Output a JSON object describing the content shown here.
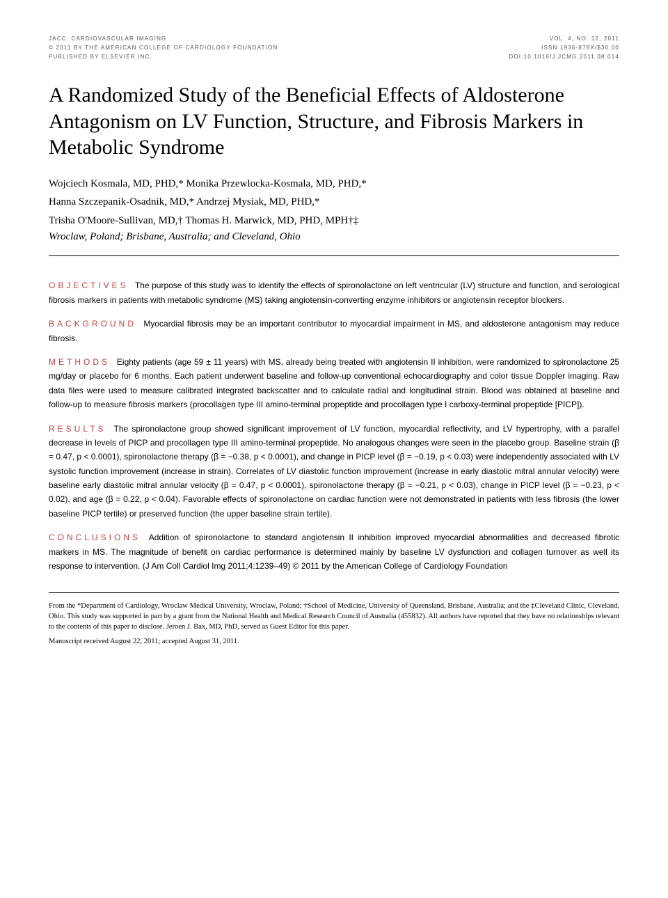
{
  "header": {
    "journal": "JACC: CARDIOVASCULAR IMAGING",
    "volume": "VOL. 4, NO. 12, 2011",
    "copyright": "© 2011 BY THE AMERICAN COLLEGE OF CARDIOLOGY FOUNDATION",
    "issn": "ISSN 1936-878X/$36.00",
    "publisher": "PUBLISHED BY ELSEVIER INC.",
    "doi": "DOI:10.1016/j.jcmg.2011.08.014"
  },
  "title": "A Randomized Study of the Beneficial Effects of Aldosterone Antagonism on LV Function, Structure, and Fibrosis Markers in Metabolic Syndrome",
  "authors_line1": "Wojciech Kosmala, MD, PHD,* Monika Przewlocka-Kosmala, MD, PHD,*",
  "authors_line2": "Hanna Szczepanik-Osadnik, MD,* Andrzej Mysiak, MD, PHD,*",
  "authors_line3": "Trisha O'Moore-Sullivan, MD,† Thomas H. Marwick, MD, PHD, MPH†‡",
  "affiliations": "Wroclaw, Poland; Brisbane, Australia; and Cleveland, Ohio",
  "abstract": {
    "objectives": {
      "label": "OBJECTIVES",
      "text": "The purpose of this study was to identify the effects of spironolactone on left ventricular (LV) structure and function, and serological fibrosis markers in patients with metabolic syndrome (MS) taking angiotensin-converting enzyme inhibitors or angiotensin receptor blockers."
    },
    "background": {
      "label": "BACKGROUND",
      "text": "Myocardial fibrosis may be an important contributor to myocardial impairment in MS, and aldosterone antagonism may reduce fibrosis."
    },
    "methods": {
      "label": "METHODS",
      "text": "Eighty patients (age 59 ± 11 years) with MS, already being treated with angiotensin II inhibition, were randomized to spironolactone 25 mg/day or placebo for 6 months. Each patient underwent baseline and follow-up conventional echocardiography and color tissue Doppler imaging. Raw data files were used to measure calibrated integrated backscatter and to calculate radial and longitudinal strain. Blood was obtained at baseline and follow-up to measure fibrosis markers (procollagen type III amino-terminal propeptide and procollagen type I carboxy-terminal propeptide [PICP])."
    },
    "results": {
      "label": "RESULTS",
      "text": "The spironolactone group showed significant improvement of LV function, myocardial reflectivity, and LV hypertrophy, with a parallel decrease in levels of PICP and procollagen type III amino-terminal propeptide. No analogous changes were seen in the placebo group. Baseline strain (β = 0.47, p < 0.0001), spironolactone therapy (β = −0.38, p < 0.0001), and change in PICP level (β = −0.19, p < 0.03) were independently associated with LV systolic function improvement (increase in strain). Correlates of LV diastolic function improvement (increase in early diastolic mitral annular velocity) were baseline early diastolic mitral annular velocity (β = 0.47, p < 0.0001), spironolactone therapy (β = −0.21, p < 0.03), change in PICP level (β = −0.23, p < 0.02), and age (β = 0.22, p < 0.04). Favorable effects of spironolactone on cardiac function were not demonstrated in patients with less fibrosis (the lower baseline PICP tertile) or preserved function (the upper baseline strain tertile)."
    },
    "conclusions": {
      "label": "CONCLUSIONS",
      "text": "Addition of spironolactone to standard angiotensin II inhibition improved myocardial abnormalities and decreased fibrotic markers in MS. The magnitude of benefit on cardiac performance is determined mainly by baseline LV dysfunction and collagen turnover as well its response to intervention.   (J Am Coll Cardiol Img 2011;4:1239–49) © 2011 by the American College of Cardiology Foundation"
    }
  },
  "footer": {
    "affiliation_note": "From the *Department of Cardiology, Wroclaw Medical University, Wroclaw, Poland; †School of Medicine, University of Queensland, Brisbane, Australia; and the ‡Cleveland Clinic, Cleveland, Ohio. This study was supported in part by a grant from the National Health and Medical Research Council of Australia (455832). All authors have reported that they have no relationships relevant to the contents of this paper to disclose. Jeroen J. Bax, MD, PhD, served as Guest Editor for this paper.",
    "manuscript_date": "Manuscript received August 22, 2011; accepted August 31, 2011."
  },
  "colors": {
    "section_label": "#c04040",
    "text": "#000000",
    "meta_text": "#555555",
    "background": "#ffffff"
  },
  "typography": {
    "title_fontsize": 30,
    "body_fontsize": 12,
    "meta_fontsize": 8,
    "footer_fontsize": 10.5,
    "section_label_letterspacing": 4
  }
}
